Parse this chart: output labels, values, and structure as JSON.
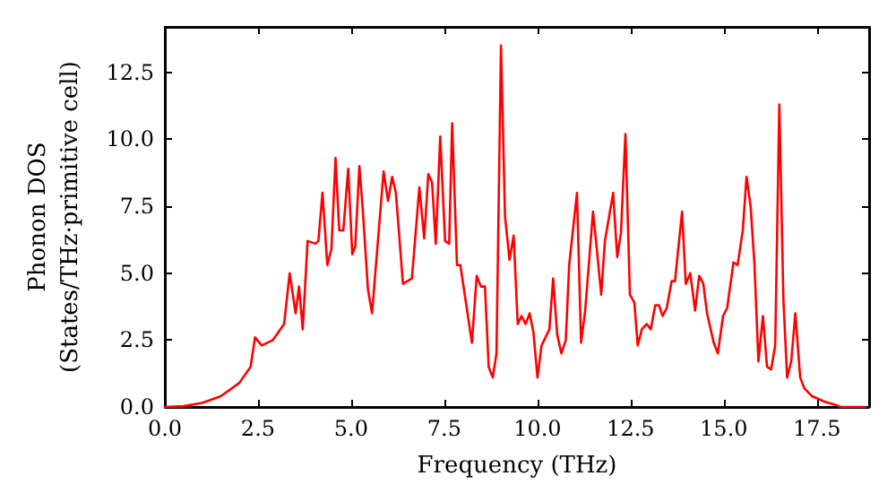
{
  "chart_data": {
    "type": "line",
    "xlabel": "Frequency (THz)",
    "ylabel": "Phonon DOS\n(States/THz·primitive cell)",
    "xlim": [
      0,
      18.9
    ],
    "ylim": [
      0,
      14.2
    ],
    "xticks": [
      {
        "value": 0,
        "label": "0.0"
      },
      {
        "value": 2.5,
        "label": "2.5"
      },
      {
        "value": 5,
        "label": "5.0"
      },
      {
        "value": 7.5,
        "label": "7.5"
      },
      {
        "value": 10,
        "label": "10.0"
      },
      {
        "value": 12.5,
        "label": "12.5"
      },
      {
        "value": 15,
        "label": "15.0"
      },
      {
        "value": 17.5,
        "label": "17.5"
      }
    ],
    "yticks": [
      {
        "value": 0,
        "label": "0.0"
      },
      {
        "value": 2.5,
        "label": "2.5"
      },
      {
        "value": 5,
        "label": "5.0"
      },
      {
        "value": 7.5,
        "label": "7.5"
      },
      {
        "value": 10,
        "label": "10.0"
      },
      {
        "value": 12.5,
        "label": "12.5"
      }
    ],
    "grid": false,
    "marker": "none",
    "line_style": "solid",
    "series": [
      {
        "color": "#ff0000",
        "x": [
          0,
          0.5,
          1,
          1.5,
          2,
          2.3,
          2.42,
          2.6,
          2.9,
          3.2,
          3.35,
          3.51,
          3.6,
          3.7,
          3.83,
          4.04,
          4.12,
          4.23,
          4.36,
          4.47,
          4.58,
          4.68,
          4.79,
          4.92,
          5.03,
          5.11,
          5.22,
          5.31,
          5.45,
          5.56,
          5.87,
          5.99,
          6.1,
          6.2,
          6.39,
          6.63,
          6.83,
          6.96,
          7.07,
          7.17,
          7.27,
          7.39,
          7.52,
          7.63,
          7.71,
          7.84,
          7.93,
          8.24,
          8.37,
          8.48,
          8.59,
          8.69,
          8.8,
          8.9,
          9.02,
          9.13,
          9.25,
          9.36,
          9.47,
          9.57,
          9.68,
          9.79,
          9.89,
          10.0,
          10.11,
          10.32,
          10.42,
          10.53,
          10.64,
          10.76,
          10.85,
          11.06,
          11.17,
          11.28,
          11.49,
          11.6,
          11.71,
          11.81,
          12.03,
          12.14,
          12.24,
          12.36,
          12.48,
          12.6,
          12.69,
          12.8,
          12.93,
          13.04,
          13.16,
          13.26,
          13.36,
          13.47,
          13.6,
          13.69,
          13.88,
          13.98,
          14.1,
          14.23,
          14.34,
          14.45,
          14.55,
          14.73,
          14.84,
          14.98,
          15.09,
          15.26,
          15.37,
          15.51,
          15.61,
          15.72,
          15.82,
          15.93,
          16.05,
          16.16,
          16.27,
          16.38,
          16.49,
          16.6,
          16.7,
          16.81,
          16.92,
          17.05,
          17.16,
          17.37,
          17.7,
          18.02,
          18.13,
          18.8
        ],
        "values": [
          0,
          0.03,
          0.15,
          0.4,
          0.9,
          1.5,
          2.6,
          2.3,
          2.5,
          3.1,
          5.0,
          3.5,
          4.5,
          2.9,
          6.2,
          6.1,
          6.2,
          8.0,
          5.3,
          5.9,
          9.3,
          6.6,
          6.6,
          8.9,
          5.7,
          6.0,
          9.0,
          7.4,
          4.4,
          3.5,
          8.8,
          7.7,
          8.6,
          8.0,
          4.6,
          4.8,
          8.2,
          6.3,
          8.7,
          8.4,
          6.1,
          10.1,
          6.2,
          6.1,
          10.6,
          5.3,
          5.3,
          2.4,
          4.9,
          4.5,
          4.5,
          1.5,
          1.1,
          2.0,
          13.5,
          7.1,
          5.5,
          6.4,
          3.1,
          3.4,
          3.1,
          3.5,
          2.8,
          1.1,
          2.3,
          2.9,
          4.8,
          2.7,
          2.0,
          2.5,
          5.3,
          8.0,
          2.4,
          3.6,
          7.3,
          5.8,
          4.2,
          6.2,
          8.0,
          5.6,
          6.5,
          10.2,
          4.2,
          3.9,
          2.3,
          2.9,
          3.1,
          2.9,
          3.8,
          3.8,
          3.4,
          3.7,
          4.7,
          4.7,
          7.3,
          4.6,
          5.0,
          3.6,
          4.9,
          4.6,
          3.5,
          2.4,
          2.0,
          3.4,
          3.7,
          5.4,
          5.3,
          6.6,
          8.6,
          7.5,
          5.4,
          1.7,
          3.4,
          1.5,
          1.4,
          2.3,
          11.3,
          4.0,
          1.1,
          1.7,
          3.5,
          1.1,
          0.7,
          0.4,
          0.2,
          0.07,
          0,
          0
        ]
      }
    ]
  }
}
